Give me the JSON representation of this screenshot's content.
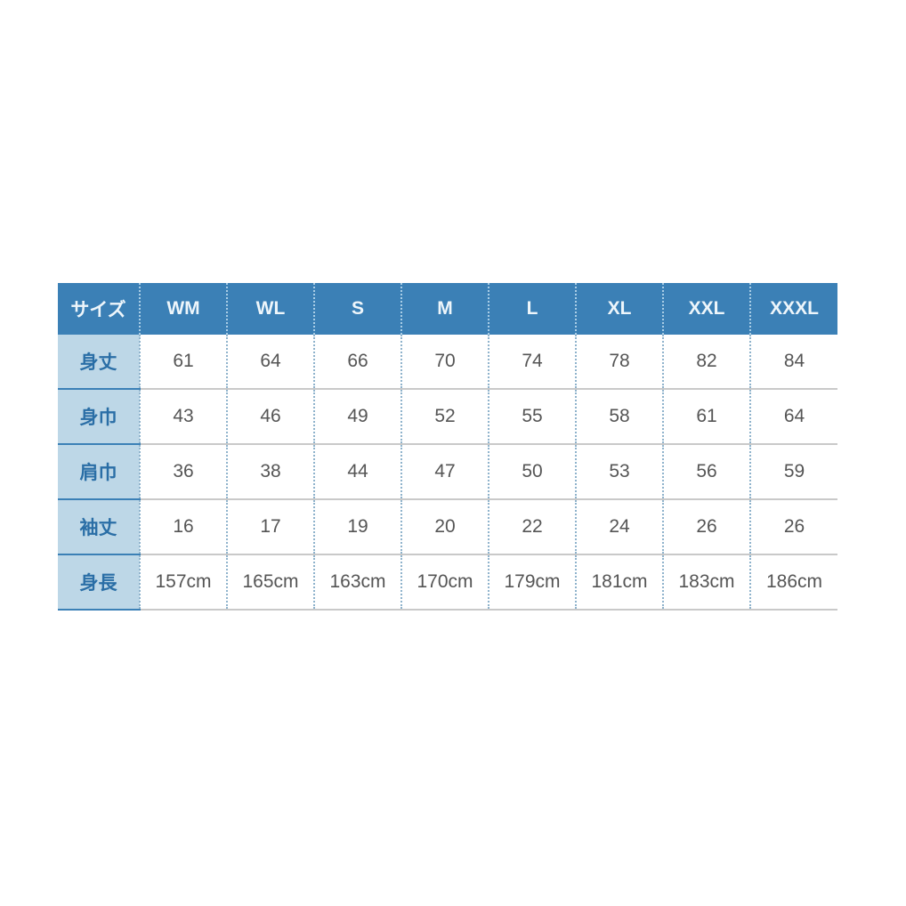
{
  "colors": {
    "header_bg": "#3b80b6",
    "label_bg": "#bdd7e7",
    "label_text": "#2a6ea6"
  },
  "table": {
    "headers": [
      "サイズ",
      "WM",
      "WL",
      "S",
      "M",
      "L",
      "XL",
      "XXL",
      "XXXL"
    ],
    "rows": [
      {
        "label": "身丈",
        "values": [
          "61",
          "64",
          "66",
          "70",
          "74",
          "78",
          "82",
          "84"
        ]
      },
      {
        "label": "身巾",
        "values": [
          "43",
          "46",
          "49",
          "52",
          "55",
          "58",
          "61",
          "64"
        ]
      },
      {
        "label": "肩巾",
        "values": [
          "36",
          "38",
          "44",
          "47",
          "50",
          "53",
          "56",
          "59"
        ]
      },
      {
        "label": "袖丈",
        "values": [
          "16",
          "17",
          "19",
          "20",
          "22",
          "24",
          "26",
          "26"
        ]
      },
      {
        "label": "身長",
        "values": [
          "157cm",
          "165cm",
          "163cm",
          "170cm",
          "179cm",
          "181cm",
          "183cm",
          "186cm"
        ]
      }
    ]
  }
}
